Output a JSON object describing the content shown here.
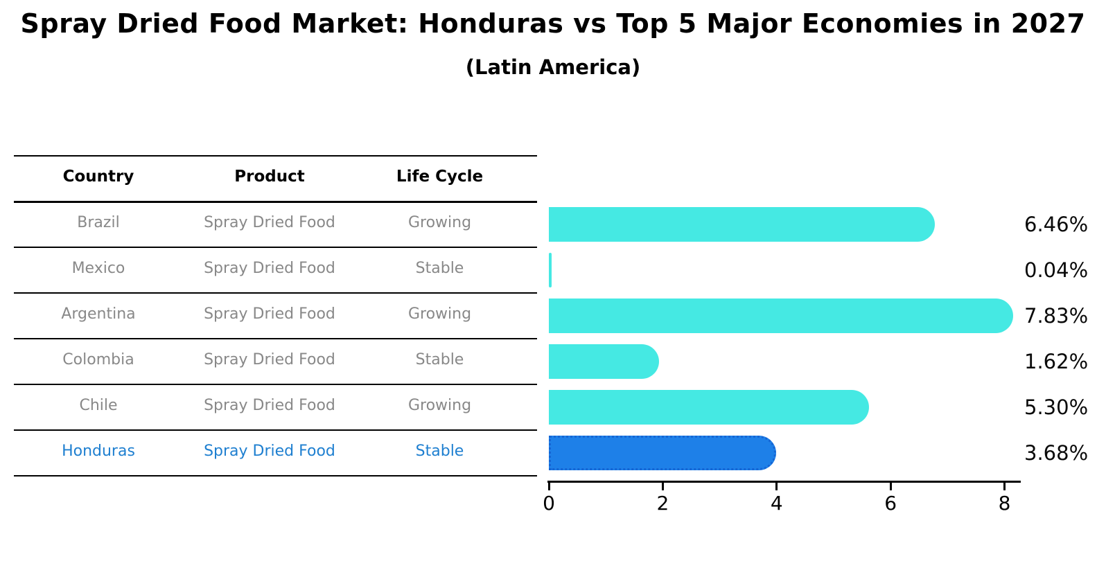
{
  "title": "Spray Dried Food Market: Honduras vs Top 5 Major Economies in 2027",
  "subtitle": "(Latin America)",
  "table": {
    "headers": [
      "Country",
      "Product",
      "Life Cycle"
    ],
    "rows": [
      {
        "country": "Brazil",
        "product": "Spray Dried Food",
        "life_cycle": "Growing",
        "highlighted": false
      },
      {
        "country": "Mexico",
        "product": "Spray Dried Food",
        "life_cycle": "Stable",
        "highlighted": false
      },
      {
        "country": "Argentina",
        "product": "Spray Dried Food",
        "life_cycle": "Growing",
        "highlighted": false
      },
      {
        "country": "Colombia",
        "product": "Spray Dried Food",
        "life_cycle": "Stable",
        "highlighted": false
      },
      {
        "country": "Chile",
        "product": "Spray Dried Food",
        "life_cycle": "Growing",
        "highlighted": false
      },
      {
        "country": "Honduras",
        "product": "Spray Dried Food",
        "life_cycle": "Stable",
        "highlighted": true
      }
    ]
  },
  "chart_data": {
    "type": "bar",
    "orientation": "horizontal",
    "title": "Spray Dried Food Market: Honduras vs Top 5 Major Economies in 2027 (Latin America)",
    "categories": [
      "Brazil",
      "Mexico",
      "Argentina",
      "Colombia",
      "Chile",
      "Honduras"
    ],
    "values": [
      6.46,
      0.04,
      7.83,
      1.62,
      5.3,
      3.68
    ],
    "value_labels": [
      "6.46%",
      "0.04%",
      "7.83%",
      "1.62%",
      "5.30%",
      "3.68%"
    ],
    "x_ticks": [
      0,
      2,
      4,
      6,
      8
    ],
    "xlim": [
      0,
      8.3
    ],
    "grid": false,
    "legend": "none",
    "highlight_category": "Honduras"
  },
  "colors": {
    "bar_default": "#45E9E3",
    "bar_highlight": "#1E80E8",
    "bar_highlight_edge": "#1565D4",
    "highlight_text": "#1E7FD0",
    "table_text": "#888888",
    "axis": "#000000"
  }
}
